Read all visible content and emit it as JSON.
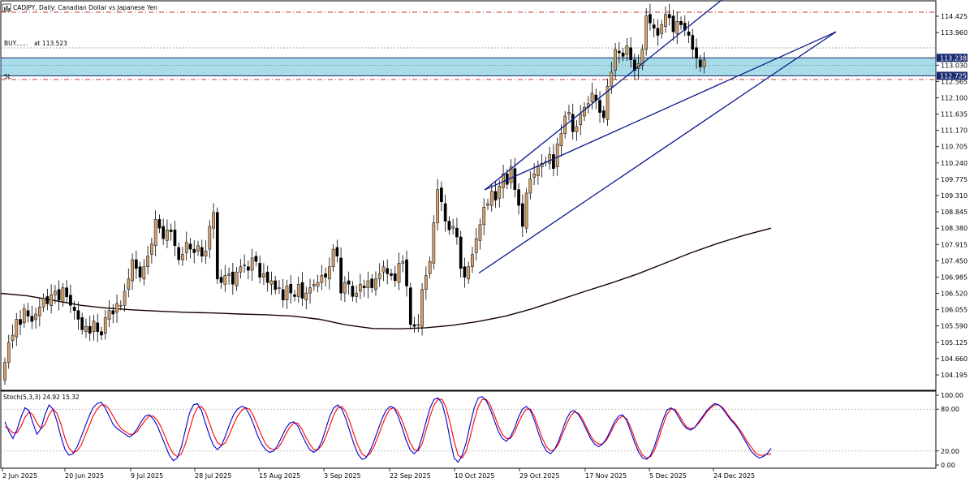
{
  "window": {
    "title": "CADJPY, Daily:  Canadian Dollar vs Japanese Yen",
    "icon": "chart-window-icon"
  },
  "trade": {
    "order_text": "BUY",
    "at_text": "at 113.523",
    "sl_text": "SL"
  },
  "price_axis": {
    "labels": [
      "114.425",
      "113.960",
      "113.030",
      "112.565",
      "112.100",
      "111.635",
      "111.170",
      "110.705",
      "110.240",
      "109.775",
      "109.310",
      "108.845",
      "108.380",
      "107.915",
      "107.450",
      "106.985",
      "106.520",
      "106.055",
      "105.590",
      "105.125",
      "104.660",
      "104.195"
    ],
    "badges": [
      {
        "value": "113.238",
        "color": "#1a2a6e"
      },
      {
        "value": "112.725",
        "color": "#1a2a6e"
      }
    ],
    "range": [
      103.88,
      114.62
    ]
  },
  "stochastic": {
    "title": "Stoch(5,3,3) 24.92 15.32",
    "levels": [
      "100.00",
      "80.00",
      "20.00",
      "0.00"
    ],
    "main_color": "#0000cc",
    "signal_color": "#ff0000"
  },
  "date_axis": {
    "labels": [
      "2 Jun 2025",
      "20 Jun 2025",
      "9 Jul 2025",
      "28 Jul 2025",
      "15 Aug 2025",
      "3 Sep 2025",
      "22 Sep 2025",
      "10 Oct 2025",
      "29 Oct 2025",
      "17 Nov 2025",
      "5 Dec 2025",
      "24 Dec 2025"
    ]
  },
  "colors": {
    "bull": "#d2a06a",
    "bear": "#000000",
    "zone_fill": "#a8dce8",
    "channel": "#0a1a8c",
    "ma": "#1a0000",
    "dashdot": "#cc3333"
  },
  "chart_data": {
    "type": "candlestick",
    "symbol": "CADJPY",
    "timeframe": "Daily",
    "ylim": [
      103.88,
      114.62
    ],
    "horizontal_levels": {
      "top_resistance": 114.54,
      "buy_entry": 113.523,
      "zone_upper": 113.238,
      "zone_lower": 112.725,
      "stop_loss": 112.62
    },
    "closes": [
      104.55,
      105.12,
      105.33,
      105.78,
      105.63,
      106.08,
      105.87,
      105.72,
      105.93,
      106.13,
      106.38,
      106.22,
      106.48,
      106.58,
      106.33,
      106.68,
      106.42,
      106.18,
      106.03,
      105.78,
      105.48,
      105.58,
      105.38,
      105.73,
      105.43,
      105.33,
      105.83,
      106.03,
      105.93,
      106.23,
      106.18,
      106.58,
      106.93,
      107.48,
      107.23,
      106.98,
      107.28,
      107.58,
      107.93,
      108.63,
      108.38,
      108.08,
      108.33,
      108.28,
      107.88,
      107.48,
      107.63,
      107.98,
      107.78,
      107.68,
      107.88,
      107.58,
      107.73,
      108.43,
      108.83,
      106.93,
      106.83,
      107.03,
      107.08,
      106.78,
      107.13,
      107.28,
      107.33,
      107.18,
      107.53,
      107.43,
      106.98,
      107.08,
      106.83,
      106.88,
      106.63,
      106.68,
      106.33,
      106.73,
      106.53,
      106.43,
      106.78,
      106.38,
      106.53,
      106.68,
      106.78,
      106.83,
      107.03,
      106.98,
      107.28,
      107.78,
      107.58,
      106.53,
      106.83,
      106.78,
      106.43,
      106.53,
      106.78,
      106.68,
      106.88,
      106.68,
      106.93,
      107.08,
      107.28,
      107.08,
      107.03,
      106.88,
      107.38,
      107.43,
      106.73,
      105.63,
      105.58,
      105.63,
      106.63,
      107.03,
      107.43,
      108.53,
      109.48,
      109.13,
      108.58,
      108.33,
      108.43,
      108.13,
      107.23,
      106.98,
      107.28,
      107.63,
      108.08,
      108.48,
      108.98,
      109.08,
      109.43,
      109.18,
      109.58,
      109.93,
      109.63,
      110.13,
      109.48,
      109.03,
      108.43,
      109.38,
      109.78,
      109.93,
      110.13,
      110.23,
      110.28,
      110.48,
      110.08,
      110.78,
      111.08,
      111.58,
      111.68,
      111.13,
      111.28,
      111.63,
      111.83,
      111.93,
      112.23,
      112.03,
      111.68,
      111.53,
      112.43,
      112.83,
      113.48,
      113.38,
      113.28,
      113.58,
      113.18,
      112.88,
      113.08,
      113.48,
      114.43,
      114.23,
      114.08,
      113.88,
      114.18,
      114.48,
      114.38,
      113.98,
      114.28,
      114.18,
      114.03,
      113.88,
      113.48,
      113.23,
      112.98,
      113.18
    ],
    "moving_average": [
      106.52,
      106.45,
      106.32,
      106.18,
      106.1,
      106.05,
      106.01,
      105.98,
      105.96,
      105.93,
      105.91,
      105.87,
      105.78,
      105.62,
      105.52,
      105.51,
      105.54,
      105.61,
      105.72,
      105.87,
      106.08,
      106.33,
      106.58,
      106.82,
      107.08,
      107.38,
      107.68,
      107.95,
      108.18,
      108.38
    ],
    "channel_upper": {
      "start": 109.47,
      "end": 113.98
    },
    "channel_lower": {
      "start": 107.1,
      "end": 113.98
    },
    "stochastic_main": [
      62,
      48,
      38,
      50,
      68,
      82,
      78,
      60,
      44,
      52,
      72,
      86,
      80,
      62,
      40,
      22,
      14,
      16,
      26,
      40,
      55,
      70,
      82,
      88,
      90,
      82,
      70,
      58,
      52,
      48,
      44,
      40,
      44,
      52,
      62,
      70,
      72,
      66,
      56,
      42,
      28,
      14,
      6,
      10,
      26,
      50,
      74,
      86,
      88,
      78,
      60,
      42,
      28,
      22,
      28,
      42,
      58,
      72,
      80,
      84,
      82,
      72,
      58,
      42,
      30,
      22,
      18,
      20,
      28,
      40,
      52,
      60,
      62,
      56,
      44,
      32,
      22,
      18,
      22,
      34,
      52,
      70,
      82,
      86,
      80,
      66,
      48,
      30,
      16,
      8,
      10,
      20,
      34,
      50,
      66,
      78,
      84,
      82,
      70,
      54,
      36,
      22,
      16,
      22,
      40,
      62,
      82,
      94,
      96,
      88,
      66,
      36,
      10,
      4,
      14,
      32,
      58,
      82,
      96,
      98,
      92,
      80,
      64,
      48,
      38,
      34,
      40,
      52,
      68,
      80,
      84,
      78,
      64,
      46,
      30,
      20,
      16,
      22,
      34,
      50,
      66,
      76,
      78,
      72,
      62,
      50,
      38,
      30,
      26,
      30,
      38,
      50,
      62,
      70,
      72,
      64,
      48,
      32,
      18,
      10,
      8,
      14,
      28,
      46,
      64,
      78,
      82,
      78,
      68,
      58,
      52,
      50,
      54,
      62,
      70,
      78,
      84,
      88,
      86,
      80,
      72,
      64,
      58,
      50,
      40,
      30,
      20,
      14,
      10,
      12,
      16,
      24
    ],
    "stochastic_signal": [
      55,
      52,
      46,
      46,
      55,
      68,
      76,
      72,
      60,
      52,
      58,
      72,
      80,
      74,
      58,
      38,
      24,
      18,
      20,
      28,
      42,
      56,
      70,
      80,
      86,
      86,
      80,
      70,
      60,
      52,
      48,
      44,
      44,
      48,
      56,
      64,
      70,
      70,
      64,
      54,
      40,
      26,
      16,
      12,
      16,
      30,
      50,
      70,
      82,
      84,
      76,
      60,
      44,
      32,
      28,
      32,
      44,
      58,
      70,
      78,
      82,
      80,
      70,
      56,
      42,
      30,
      24,
      22,
      24,
      32,
      44,
      54,
      60,
      60,
      52,
      40,
      30,
      22,
      22,
      28,
      40,
      56,
      72,
      82,
      84,
      76,
      62,
      44,
      28,
      16,
      12,
      16,
      26,
      40,
      56,
      70,
      80,
      82,
      76,
      64,
      48,
      32,
      22,
      20,
      30,
      50,
      70,
      86,
      94,
      94,
      82,
      60,
      34,
      14,
      10,
      20,
      40,
      64,
      84,
      94,
      94,
      86,
      72,
      56,
      44,
      38,
      38,
      46,
      60,
      72,
      80,
      80,
      70,
      54,
      38,
      26,
      20,
      22,
      30,
      44,
      58,
      70,
      76,
      74,
      66,
      54,
      42,
      34,
      30,
      30,
      36,
      46,
      58,
      66,
      70,
      66,
      54,
      38,
      24,
      14,
      10,
      12,
      22,
      38,
      56,
      72,
      80,
      80,
      72,
      62,
      54,
      52,
      54,
      60,
      68,
      76,
      82,
      86,
      86,
      82,
      74,
      66,
      60,
      52,
      44,
      34,
      26,
      18,
      14,
      14,
      15,
      16
    ]
  }
}
